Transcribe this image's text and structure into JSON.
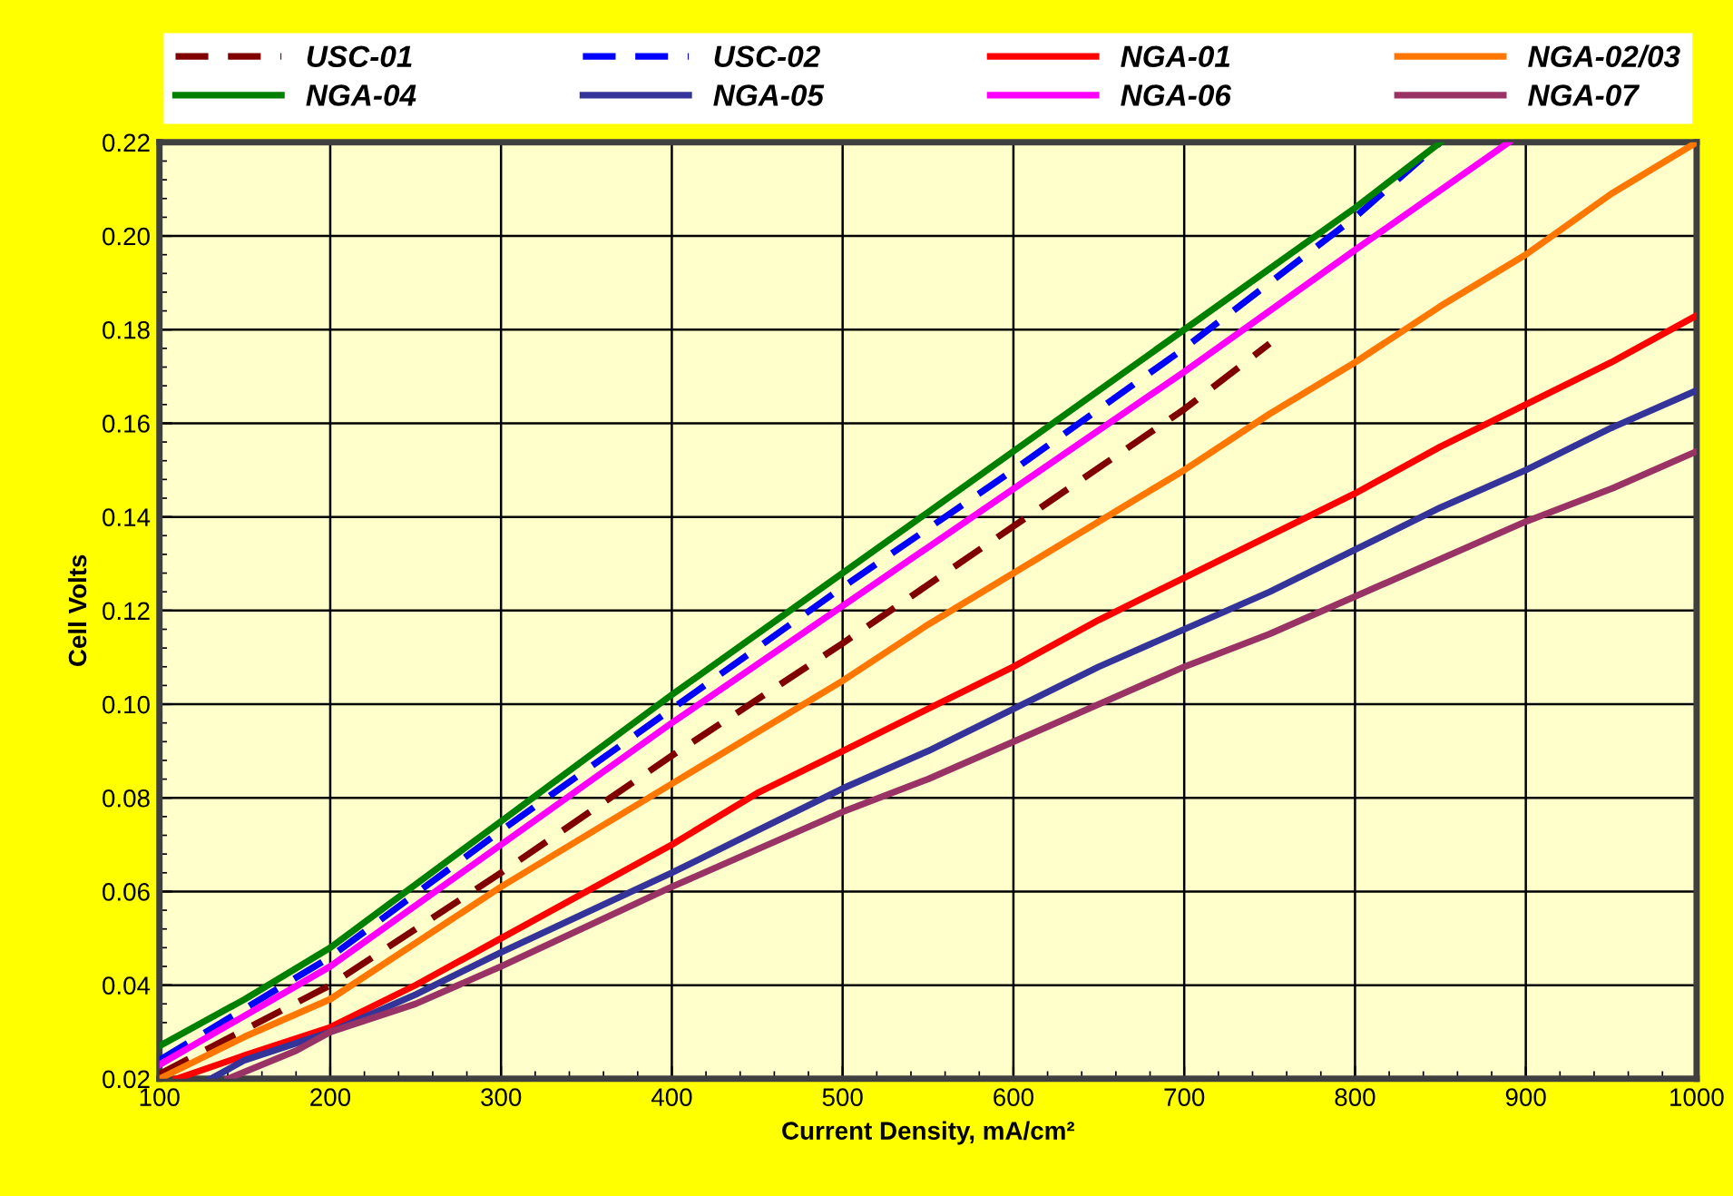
{
  "chart_data": {
    "type": "line",
    "xlabel": "Current Density, mA/cm²",
    "ylabel": "Cell Volts",
    "xlim": [
      100,
      1000
    ],
    "ylim": [
      0.02,
      0.22
    ],
    "xticks": [
      100,
      200,
      300,
      400,
      500,
      600,
      700,
      800,
      900,
      1000
    ],
    "yticks": [
      {
        "value": 0.02,
        "label": "0.02"
      },
      {
        "value": 0.04,
        "label": "0.04"
      },
      {
        "value": 0.06,
        "label": "0.06"
      },
      {
        "value": 0.08,
        "label": "0.08"
      },
      {
        "value": 0.1,
        "label": "0.10"
      },
      {
        "value": 0.12,
        "label": "0.12"
      },
      {
        "value": 0.14,
        "label": "0.14"
      },
      {
        "value": 0.16,
        "label": "0.16"
      },
      {
        "value": 0.18,
        "label": "0.18"
      },
      {
        "value": 0.2,
        "label": "0.20"
      },
      {
        "value": 0.22,
        "label": "0.22"
      }
    ],
    "grid": true,
    "legend": "top",
    "marker": "none",
    "series": [
      {
        "name": "USC-01",
        "color": "#800000",
        "line_style": "dashed",
        "x": [
          100,
          200,
          300,
          400,
          500,
          600,
          700,
          750
        ],
        "values": [
          0.021,
          0.04,
          0.064,
          0.089,
          0.113,
          0.138,
          0.163,
          0.177
        ]
      },
      {
        "name": "USC-02",
        "color": "#0000ff",
        "line_style": "dashed",
        "x": [
          100,
          200,
          300,
          400,
          500,
          600,
          700,
          800,
          850
        ],
        "values": [
          0.024,
          0.046,
          0.073,
          0.099,
          0.125,
          0.15,
          0.176,
          0.204,
          0.22
        ]
      },
      {
        "name": "NGA-01",
        "color": "#ff0000",
        "line_style": "solid",
        "x": [
          110,
          150,
          200,
          250,
          300,
          400,
          450,
          500,
          600,
          650,
          700,
          800,
          850,
          900,
          950,
          1000
        ],
        "values": [
          0.02,
          0.025,
          0.031,
          0.04,
          0.05,
          0.07,
          0.081,
          0.09,
          0.108,
          0.118,
          0.127,
          0.145,
          0.155,
          0.164,
          0.173,
          0.183
        ]
      },
      {
        "name": "NGA-02/03",
        "color": "#ff7700",
        "line_style": "solid",
        "x": [
          100,
          150,
          200,
          250,
          300,
          400,
          500,
          550,
          600,
          700,
          750,
          800,
          850,
          900,
          950,
          1000
        ],
        "values": [
          0.02,
          0.029,
          0.037,
          0.049,
          0.061,
          0.083,
          0.105,
          0.117,
          0.128,
          0.15,
          0.162,
          0.173,
          0.185,
          0.196,
          0.209,
          0.22
        ]
      },
      {
        "name": "NGA-04",
        "color": "#008000",
        "line_style": "solid",
        "x": [
          100,
          150,
          200,
          300,
          400,
          500,
          600,
          700,
          800,
          850
        ],
        "values": [
          0.027,
          0.037,
          0.048,
          0.075,
          0.102,
          0.128,
          0.154,
          0.18,
          0.206,
          0.22
        ]
      },
      {
        "name": "NGA-05",
        "color": "#333399",
        "line_style": "solid",
        "x": [
          130,
          150,
          200,
          250,
          300,
          400,
          450,
          500,
          550,
          600,
          650,
          700,
          750,
          800,
          850,
          900,
          950,
          1000
        ],
        "values": [
          0.02,
          0.024,
          0.03,
          0.038,
          0.047,
          0.064,
          0.073,
          0.082,
          0.09,
          0.099,
          0.108,
          0.116,
          0.124,
          0.133,
          0.142,
          0.15,
          0.159,
          0.167
        ]
      },
      {
        "name": "NGA-06",
        "color": "#ff00ff",
        "line_style": "solid",
        "x": [
          100,
          200,
          300,
          400,
          500,
          600,
          700,
          800,
          890
        ],
        "values": [
          0.023,
          0.044,
          0.07,
          0.096,
          0.121,
          0.146,
          0.171,
          0.197,
          0.22
        ]
      },
      {
        "name": "NGA-07",
        "color": "#993366",
        "line_style": "solid",
        "x": [
          140,
          180,
          200,
          250,
          300,
          400,
          500,
          550,
          600,
          700,
          750,
          800,
          900,
          950,
          1000
        ],
        "values": [
          0.02,
          0.026,
          0.03,
          0.036,
          0.044,
          0.061,
          0.077,
          0.084,
          0.092,
          0.108,
          0.115,
          0.123,
          0.139,
          0.146,
          0.154
        ]
      }
    ]
  }
}
